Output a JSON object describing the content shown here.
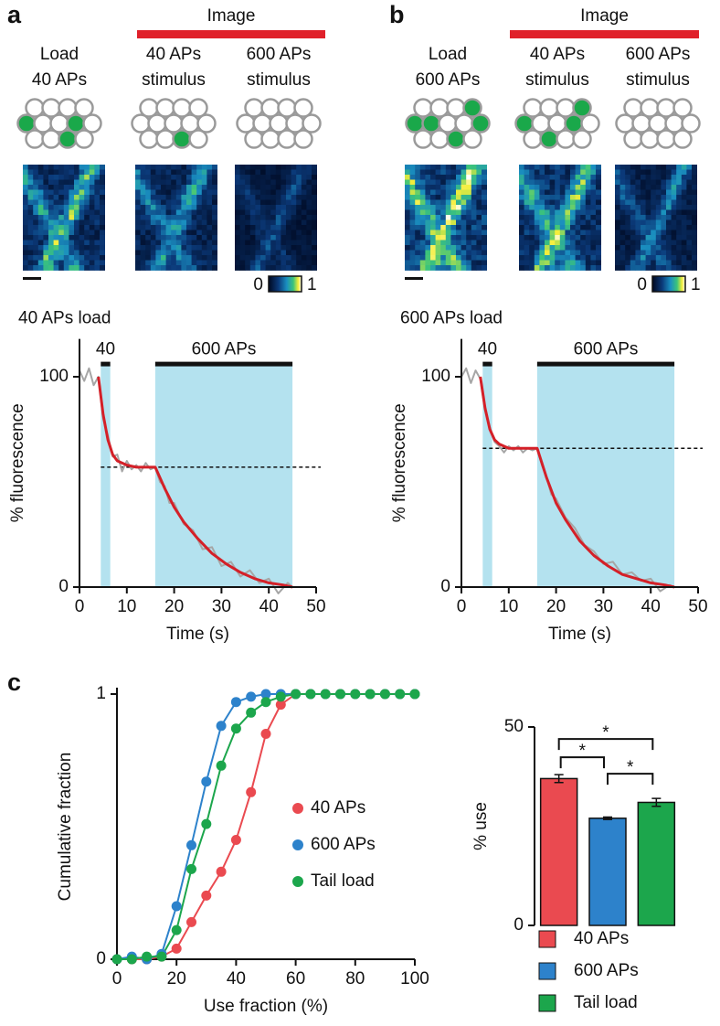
{
  "figure": {
    "panel_labels": [
      "a",
      "b",
      "c"
    ],
    "a": {
      "group_label": "Image",
      "columns": [
        [
          "Load",
          "40 APs"
        ],
        [
          "40 APs",
          "stimulus"
        ],
        [
          "600 APs",
          "stimulus"
        ]
      ],
      "colorbar": [
        "0",
        "1"
      ]
    },
    "b": {
      "group_label": "Image",
      "columns": [
        [
          "Load",
          "600 APs"
        ],
        [
          "40 APs",
          "stimulus"
        ],
        [
          "600 APs",
          "stimulus"
        ]
      ],
      "colorbar": [
        "0",
        "1"
      ]
    }
  },
  "chart_data": [
    {
      "type": "line",
      "title": "40 APs load",
      "xlabel": "Time (s)",
      "ylabel": "% fluorescence",
      "xlim": [
        0,
        50
      ],
      "ylim": [
        0,
        118
      ],
      "xticks": [
        0,
        10,
        20,
        30,
        40,
        50
      ],
      "yticks": [
        0,
        100
      ],
      "stimuli": [
        {
          "label": "40",
          "span": [
            4.5,
            6.5
          ]
        },
        {
          "label": "600 APs",
          "span": [
            16,
            45
          ]
        }
      ],
      "reference_line": 57,
      "series": [
        {
          "color": "#a6a6a6",
          "x": [
            0,
            1,
            2,
            3,
            4,
            5,
            6,
            7,
            8,
            9,
            10,
            11,
            12,
            13,
            14,
            15,
            16,
            17,
            18,
            19,
            20,
            22,
            24,
            26,
            28,
            30,
            32,
            34,
            36,
            38,
            40,
            42,
            44,
            45
          ],
          "values": [
            103,
            98,
            104,
            96,
            100,
            80,
            72,
            62,
            63,
            55,
            60,
            56,
            58,
            55,
            59,
            56,
            57,
            50,
            48,
            40,
            40,
            30,
            27,
            18,
            19,
            10,
            12,
            5,
            8,
            2,
            4,
            -3,
            2,
            0
          ]
        },
        {
          "color": "#d42028",
          "x": [
            4,
            5,
            6,
            7,
            8,
            10,
            12,
            14,
            16,
            18,
            20,
            22,
            25,
            28,
            31,
            34,
            37,
            40,
            43,
            45
          ],
          "values": [
            100,
            82,
            70,
            63,
            60,
            58,
            57,
            57,
            57,
            47,
            38,
            31,
            23,
            16,
            11,
            7,
            4,
            2,
            1,
            0
          ]
        }
      ]
    },
    {
      "type": "line",
      "title": "600 APs load",
      "xlabel": "Time (s)",
      "ylabel": "% fluorescence",
      "xlim": [
        0,
        50
      ],
      "ylim": [
        0,
        118
      ],
      "xticks": [
        0,
        10,
        20,
        30,
        40,
        50
      ],
      "yticks": [
        0,
        100
      ],
      "stimuli": [
        {
          "label": "40",
          "span": [
            4.5,
            6.5
          ]
        },
        {
          "label": "600 APs",
          "span": [
            16,
            45
          ]
        }
      ],
      "reference_line": 66,
      "series": [
        {
          "color": "#a6a6a6",
          "x": [
            0,
            1,
            2,
            3,
            4,
            5,
            6,
            7,
            8,
            9,
            10,
            11,
            12,
            13,
            14,
            15,
            16,
            17,
            18,
            19,
            20,
            22,
            24,
            26,
            28,
            30,
            32,
            34,
            36,
            38,
            40,
            42,
            44,
            45
          ],
          "values": [
            100,
            104,
            97,
            103,
            99,
            84,
            76,
            69,
            67,
            64,
            67,
            65,
            67,
            64,
            66,
            65,
            66,
            58,
            52,
            44,
            42,
            33,
            28,
            20,
            17,
            11,
            12,
            6,
            7,
            3,
            4,
            -2,
            1,
            0
          ]
        },
        {
          "color": "#d42028",
          "x": [
            4,
            5,
            6,
            7,
            8,
            10,
            12,
            14,
            16,
            18,
            20,
            22,
            25,
            28,
            31,
            34,
            37,
            40,
            43,
            45
          ],
          "values": [
            100,
            85,
            75,
            70,
            68,
            66,
            66,
            66,
            66,
            52,
            40,
            32,
            22,
            15,
            10,
            6,
            4,
            2,
            1,
            0
          ]
        }
      ]
    },
    {
      "type": "dotline",
      "xlabel": "Use fraction (%)",
      "ylabel": "Cumulative fraction",
      "xlim": [
        0,
        100
      ],
      "ylim": [
        0,
        1
      ],
      "xticks": [
        0,
        20,
        40,
        60,
        80,
        100
      ],
      "yticks": [
        0,
        1
      ],
      "x": [
        0,
        5,
        10,
        15,
        20,
        25,
        30,
        35,
        40,
        45,
        50,
        55,
        60,
        65,
        70,
        75,
        80,
        85,
        90,
        95,
        100
      ],
      "series": [
        {
          "name": "40 APs",
          "color": "#ea4a50",
          "values": [
            0,
            0,
            0,
            0.01,
            0.04,
            0.14,
            0.24,
            0.33,
            0.45,
            0.63,
            0.85,
            0.96,
            1,
            1,
            1,
            1,
            1,
            1,
            1,
            1,
            1
          ]
        },
        {
          "name": "600 APs",
          "color": "#2d82cb",
          "values": [
            0,
            0.01,
            0,
            0.02,
            0.2,
            0.43,
            0.67,
            0.88,
            0.97,
            0.99,
            1,
            1,
            1,
            1,
            1,
            1,
            1,
            1,
            1,
            1,
            1
          ]
        },
        {
          "name": "Tail load",
          "color": "#1ca64c",
          "values": [
            0,
            0,
            0.01,
            0.01,
            0.11,
            0.34,
            0.51,
            0.73,
            0.87,
            0.93,
            0.97,
            0.99,
            1,
            1,
            1,
            1,
            1,
            1,
            1,
            1,
            1
          ]
        }
      ]
    },
    {
      "type": "bar",
      "ylabel": "% use",
      "ylim": [
        0,
        50
      ],
      "yticks": [
        0,
        50
      ],
      "categories": [
        "40 APs",
        "600 APs",
        "Tail load"
      ],
      "values": [
        37,
        27,
        31
      ],
      "errors": [
        1,
        0.3,
        1
      ],
      "colors": [
        "#ea4a50",
        "#2d82cb",
        "#1ca64c"
      ],
      "significance": [
        "*",
        "*",
        "*"
      ]
    }
  ]
}
